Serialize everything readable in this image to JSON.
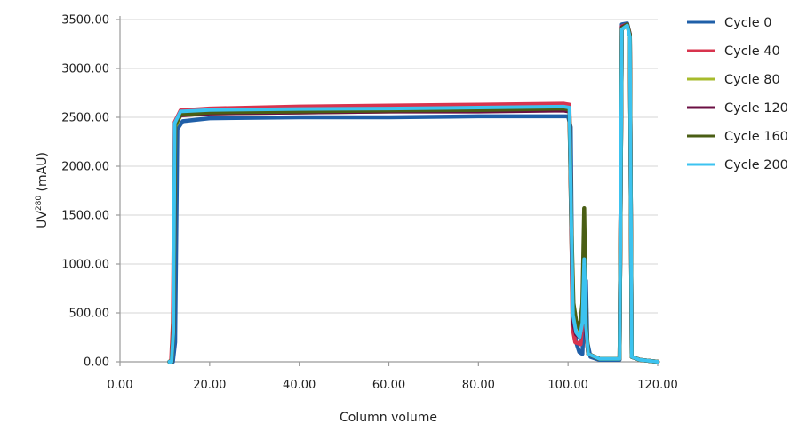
{
  "chart_data": {
    "type": "line",
    "title": "",
    "xlabel": "Column volume",
    "ylabel_main": "UV",
    "ylabel_sup": "280",
    "ylabel_unit": " (mAU)",
    "xlim": [
      0,
      120
    ],
    "ylim": [
      0,
      3500
    ],
    "xticks": [
      0,
      20,
      40,
      60,
      80,
      100,
      120
    ],
    "xtick_labels": [
      "0.00",
      "20.00",
      "40.00",
      "60.00",
      "80.00",
      "100.00",
      "120.00"
    ],
    "yticks": [
      0,
      500,
      1000,
      1500,
      2000,
      2500,
      3000,
      3500
    ],
    "ytick_labels": [
      "0.00",
      "500.00",
      "1000.00",
      "1500.00",
      "2000.00",
      "2500.00",
      "3000.00",
      "3500.00"
    ],
    "grid": "horizontal",
    "legend_position": "right",
    "series": [
      {
        "name": "Cycle 0",
        "color": "#1f5fa8",
        "points": [
          [
            11,
            0
          ],
          [
            11.8,
            0
          ],
          [
            12.3,
            200
          ],
          [
            12.8,
            2380
          ],
          [
            14,
            2460
          ],
          [
            20,
            2490
          ],
          [
            40,
            2500
          ],
          [
            60,
            2500
          ],
          [
            80,
            2510
          ],
          [
            100,
            2510
          ],
          [
            100.6,
            2400
          ],
          [
            101,
            500
          ],
          [
            101.8,
            200
          ],
          [
            102.5,
            100
          ],
          [
            103.2,
            80
          ],
          [
            103.6,
            500
          ],
          [
            104,
            830
          ],
          [
            104.3,
            200
          ],
          [
            105,
            50
          ],
          [
            107,
            20
          ],
          [
            111.5,
            20
          ],
          [
            112,
            3450
          ],
          [
            113.2,
            3460
          ],
          [
            113.8,
            3350
          ],
          [
            114.2,
            50
          ],
          [
            116,
            20
          ],
          [
            120,
            0
          ]
        ]
      },
      {
        "name": "Cycle 40",
        "color": "#d8344e",
        "points": [
          [
            11,
            0
          ],
          [
            11.4,
            0
          ],
          [
            11.8,
            400
          ],
          [
            12.2,
            2450
          ],
          [
            13.5,
            2570
          ],
          [
            20,
            2590
          ],
          [
            40,
            2610
          ],
          [
            60,
            2620
          ],
          [
            80,
            2630
          ],
          [
            99,
            2640
          ],
          [
            100.3,
            2630
          ],
          [
            100.7,
            1500
          ],
          [
            101,
            350
          ],
          [
            101.6,
            200
          ],
          [
            102.8,
            180
          ],
          [
            103.2,
            400
          ],
          [
            103.6,
            1100
          ],
          [
            104,
            300
          ],
          [
            104.5,
            80
          ],
          [
            107,
            30
          ],
          [
            111.5,
            30
          ],
          [
            112,
            3430
          ],
          [
            113.2,
            3450
          ],
          [
            113.8,
            3350
          ],
          [
            114.2,
            50
          ],
          [
            116,
            20
          ],
          [
            120,
            0
          ]
        ]
      },
      {
        "name": "Cycle 80",
        "color": "#a7bb2c",
        "points": [
          [
            11,
            0
          ],
          [
            11.5,
            0
          ],
          [
            11.9,
            300
          ],
          [
            12.3,
            2400
          ],
          [
            13.5,
            2520
          ],
          [
            20,
            2540
          ],
          [
            40,
            2550
          ],
          [
            60,
            2560
          ],
          [
            80,
            2570
          ],
          [
            99,
            2580
          ],
          [
            100.3,
            2570
          ],
          [
            100.7,
            1400
          ],
          [
            101.1,
            400
          ],
          [
            101.8,
            300
          ],
          [
            102.6,
            280
          ],
          [
            103.2,
            500
          ],
          [
            103.6,
            1250
          ],
          [
            104,
            350
          ],
          [
            104.5,
            80
          ],
          [
            107,
            30
          ],
          [
            111.5,
            30
          ],
          [
            112,
            3400
          ],
          [
            113.2,
            3440
          ],
          [
            113.8,
            3330
          ],
          [
            114.2,
            50
          ],
          [
            116,
            20
          ],
          [
            120,
            0
          ]
        ]
      },
      {
        "name": "Cycle 120",
        "color": "#6b0f43",
        "points": [
          [
            11,
            0
          ],
          [
            11.5,
            0
          ],
          [
            11.9,
            300
          ],
          [
            12.3,
            2430
          ],
          [
            13.5,
            2520
          ],
          [
            20,
            2540
          ],
          [
            40,
            2550
          ],
          [
            60,
            2560
          ],
          [
            80,
            2560
          ],
          [
            99,
            2570
          ],
          [
            100.3,
            2560
          ],
          [
            100.7,
            1400
          ],
          [
            101.1,
            400
          ],
          [
            101.8,
            280
          ],
          [
            102.6,
            250
          ],
          [
            103.2,
            450
          ],
          [
            103.6,
            1200
          ],
          [
            104,
            300
          ],
          [
            104.5,
            80
          ],
          [
            107,
            30
          ],
          [
            111.5,
            30
          ],
          [
            112,
            3420
          ],
          [
            113.2,
            3450
          ],
          [
            113.8,
            3340
          ],
          [
            114.2,
            50
          ],
          [
            116,
            20
          ],
          [
            120,
            0
          ]
        ]
      },
      {
        "name": "Cycle 160",
        "color": "#4a5e14",
        "points": [
          [
            11,
            0
          ],
          [
            11.5,
            0
          ],
          [
            11.9,
            300
          ],
          [
            12.3,
            2420
          ],
          [
            13.5,
            2530
          ],
          [
            20,
            2550
          ],
          [
            40,
            2560
          ],
          [
            60,
            2570
          ],
          [
            80,
            2575
          ],
          [
            99,
            2590
          ],
          [
            100.3,
            2580
          ],
          [
            100.7,
            1500
          ],
          [
            101.2,
            600
          ],
          [
            101.8,
            420
          ],
          [
            102.6,
            330
          ],
          [
            103.2,
            600
          ],
          [
            103.6,
            1570
          ],
          [
            104,
            400
          ],
          [
            104.5,
            80
          ],
          [
            107,
            30
          ],
          [
            111.5,
            30
          ],
          [
            112,
            3410
          ],
          [
            113.2,
            3450
          ],
          [
            113.8,
            3340
          ],
          [
            114.2,
            50
          ],
          [
            116,
            20
          ],
          [
            120,
            0
          ]
        ]
      },
      {
        "name": "Cycle 200",
        "color": "#3cc3f0",
        "points": [
          [
            11,
            0
          ],
          [
            11.5,
            0
          ],
          [
            11.9,
            300
          ],
          [
            12.2,
            2440
          ],
          [
            13.5,
            2560
          ],
          [
            20,
            2575
          ],
          [
            40,
            2585
          ],
          [
            60,
            2590
          ],
          [
            80,
            2600
          ],
          [
            99,
            2610
          ],
          [
            100.3,
            2600
          ],
          [
            100.7,
            1500
          ],
          [
            101.1,
            480
          ],
          [
            101.8,
            300
          ],
          [
            102.6,
            250
          ],
          [
            103.2,
            400
          ],
          [
            103.6,
            1050
          ],
          [
            104,
            350
          ],
          [
            104.5,
            80
          ],
          [
            107,
            30
          ],
          [
            111.5,
            30
          ],
          [
            112,
            3400
          ],
          [
            113.2,
            3440
          ],
          [
            113.8,
            3320
          ],
          [
            114.2,
            50
          ],
          [
            116,
            20
          ],
          [
            120,
            0
          ]
        ]
      }
    ]
  }
}
